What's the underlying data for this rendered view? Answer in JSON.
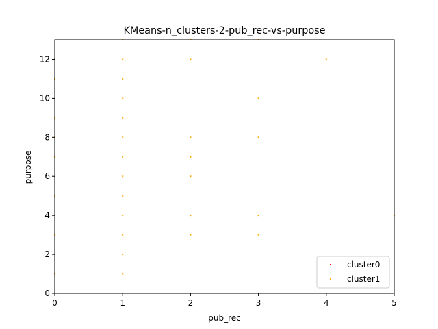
{
  "chart_data": {
    "type": "scatter",
    "title": "KMeans-n_clusters-2-pub_rec-vs-purpose",
    "xlabel": "pub_rec",
    "ylabel": "purpose",
    "xlim": [
      0,
      5
    ],
    "ylim": [
      0,
      13
    ],
    "xticks": [
      "0",
      "1",
      "2",
      "3",
      "4",
      "5"
    ],
    "yticks": [
      "0",
      "2",
      "4",
      "6",
      "8",
      "10",
      "12"
    ],
    "grid": false,
    "legend_position": "lower-right",
    "series": [
      {
        "name": "cluster0",
        "color": "#ff0000",
        "points": []
      },
      {
        "name": "cluster1",
        "color": "#ffa500",
        "points": [
          [
            0,
            1
          ],
          [
            0,
            3
          ],
          [
            0,
            5
          ],
          [
            0,
            7
          ],
          [
            0,
            8
          ],
          [
            0,
            9
          ],
          [
            0,
            11
          ],
          [
            0,
            12
          ],
          [
            1,
            1
          ],
          [
            1,
            2
          ],
          [
            1,
            3
          ],
          [
            1,
            4
          ],
          [
            1,
            5
          ],
          [
            1,
            6
          ],
          [
            1,
            7
          ],
          [
            1,
            8
          ],
          [
            1,
            9
          ],
          [
            1,
            10
          ],
          [
            1,
            11
          ],
          [
            1,
            12
          ],
          [
            1,
            13
          ],
          [
            2,
            3
          ],
          [
            2,
            4
          ],
          [
            2,
            6
          ],
          [
            2,
            7
          ],
          [
            2,
            8
          ],
          [
            2,
            12
          ],
          [
            2,
            13
          ],
          [
            3,
            3
          ],
          [
            3,
            4
          ],
          [
            3,
            8
          ],
          [
            3,
            10
          ],
          [
            3,
            13
          ],
          [
            4,
            12
          ],
          [
            5,
            4
          ]
        ]
      }
    ]
  }
}
